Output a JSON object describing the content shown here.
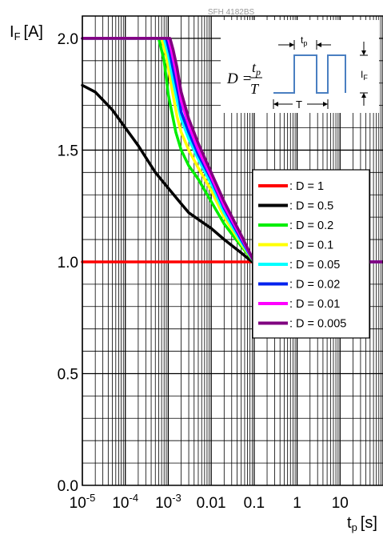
{
  "chart_data": {
    "type": "line",
    "title": "SFH 4182BS",
    "ylabel_main": "I",
    "ylabel_sub": "F",
    "ylabel_unit": "[A]",
    "xlabel_main": "t",
    "xlabel_sub": "p",
    "xlabel_unit": "[s]",
    "xscale": "log",
    "xlim": [
      1e-05,
      100
    ],
    "ylim": [
      0,
      2.1
    ],
    "grid": true,
    "x_ticks": [
      {
        "value": 1e-05,
        "base": "10",
        "exp": "-5"
      },
      {
        "value": 0.0001,
        "base": "10",
        "exp": "-4"
      },
      {
        "value": 0.001,
        "base": "10",
        "exp": "-3"
      },
      {
        "value": 0.01,
        "label": "0.01"
      },
      {
        "value": 0.1,
        "label": "0.1"
      },
      {
        "value": 1,
        "label": "1"
      },
      {
        "value": 10,
        "label": "10"
      }
    ],
    "y_ticks": [
      {
        "value": 0,
        "label": "0.0"
      },
      {
        "value": 0.5,
        "label": "0.5"
      },
      {
        "value": 1.0,
        "label": "1.0"
      },
      {
        "value": 1.5,
        "label": "1.5"
      },
      {
        "value": 2.0,
        "label": "2.0"
      }
    ],
    "legend_position": "right",
    "series": [
      {
        "name": ": D = 1",
        "color": "#ff0000",
        "points": [
          [
            1e-05,
            1.0
          ],
          [
            100,
            1.0
          ]
        ]
      },
      {
        "name": ": D = 0.5",
        "color": "#000000",
        "points": [
          [
            1e-05,
            1.79
          ],
          [
            2e-05,
            1.76
          ],
          [
            5e-05,
            1.68
          ],
          [
            0.0001,
            1.6
          ],
          [
            0.0002,
            1.52
          ],
          [
            0.0005,
            1.4
          ],
          [
            0.001,
            1.33
          ],
          [
            0.002,
            1.26
          ],
          [
            0.003,
            1.22
          ],
          [
            0.005,
            1.19
          ],
          [
            0.01,
            1.15
          ],
          [
            0.02,
            1.1
          ],
          [
            0.05,
            1.04
          ],
          [
            0.09,
            1.0
          ],
          [
            100,
            1.0
          ]
        ]
      },
      {
        "name": ": D = 0.2",
        "color": "#00ee00",
        "points": [
          [
            1e-05,
            2.0
          ],
          [
            0.0006,
            2.0
          ],
          [
            0.0008,
            1.9
          ],
          [
            0.001,
            1.75
          ],
          [
            0.0015,
            1.58
          ],
          [
            0.002,
            1.5
          ],
          [
            0.003,
            1.43
          ],
          [
            0.005,
            1.37
          ],
          [
            0.01,
            1.27
          ],
          [
            0.02,
            1.17
          ],
          [
            0.05,
            1.07
          ],
          [
            0.1,
            1.0
          ],
          [
            100,
            1.0
          ]
        ]
      },
      {
        "name": ": D = 0.1",
        "color": "#ffff00",
        "points": [
          [
            1e-05,
            2.0
          ],
          [
            0.0007,
            2.0
          ],
          [
            0.0009,
            1.92
          ],
          [
            0.0012,
            1.78
          ],
          [
            0.0016,
            1.65
          ],
          [
            0.002,
            1.58
          ],
          [
            0.003,
            1.5
          ],
          [
            0.005,
            1.42
          ],
          [
            0.01,
            1.32
          ],
          [
            0.02,
            1.2
          ],
          [
            0.05,
            1.08
          ],
          [
            0.1,
            1.0
          ],
          [
            100,
            1.0
          ]
        ]
      },
      {
        "name": ": D = 0.05",
        "color": "#00ffff",
        "points": [
          [
            1e-05,
            2.0
          ],
          [
            0.0008,
            2.0
          ],
          [
            0.001,
            1.93
          ],
          [
            0.0013,
            1.81
          ],
          [
            0.0017,
            1.7
          ],
          [
            0.002,
            1.64
          ],
          [
            0.003,
            1.55
          ],
          [
            0.005,
            1.46
          ],
          [
            0.01,
            1.35
          ],
          [
            0.02,
            1.22
          ],
          [
            0.05,
            1.09
          ],
          [
            0.1,
            1.0
          ],
          [
            100,
            1.0
          ]
        ]
      },
      {
        "name": ": D = 0.02",
        "color": "#0022ee",
        "points": [
          [
            1e-05,
            2.0
          ],
          [
            0.0009,
            2.0
          ],
          [
            0.0011,
            1.93
          ],
          [
            0.0014,
            1.83
          ],
          [
            0.0018,
            1.73
          ],
          [
            0.002,
            1.67
          ],
          [
            0.003,
            1.58
          ],
          [
            0.005,
            1.48
          ],
          [
            0.01,
            1.37
          ],
          [
            0.02,
            1.24
          ],
          [
            0.05,
            1.1
          ],
          [
            0.1,
            1.0
          ],
          [
            100,
            1.0
          ]
        ]
      },
      {
        "name": ": D = 0.01",
        "color": "#ff00ff",
        "points": [
          [
            1e-05,
            2.0
          ],
          [
            0.001,
            2.0
          ],
          [
            0.0012,
            1.94
          ],
          [
            0.0015,
            1.85
          ],
          [
            0.002,
            1.72
          ],
          [
            0.003,
            1.61
          ],
          [
            0.005,
            1.5
          ],
          [
            0.01,
            1.38
          ],
          [
            0.02,
            1.25
          ],
          [
            0.05,
            1.11
          ],
          [
            0.1,
            1.0
          ],
          [
            100,
            1.0
          ]
        ]
      },
      {
        "name": ": D = 0.005",
        "color": "#800080",
        "points": [
          [
            1e-05,
            2.0
          ],
          [
            0.0011,
            2.0
          ],
          [
            0.0013,
            1.95
          ],
          [
            0.0016,
            1.87
          ],
          [
            0.002,
            1.76
          ],
          [
            0.003,
            1.64
          ],
          [
            0.005,
            1.53
          ],
          [
            0.01,
            1.4
          ],
          [
            0.02,
            1.27
          ],
          [
            0.05,
            1.12
          ],
          [
            0.1,
            1.0
          ],
          [
            100,
            1.0
          ]
        ]
      }
    ],
    "inset": {
      "formula_lhs": "D =",
      "numerator_main": "t",
      "numerator_sub": "p",
      "denominator": "T",
      "tp_label_main": "t",
      "tp_label_sub": "p",
      "T_label": "T",
      "if_label_main": "I",
      "if_label_sub": "F",
      "pulse_color": "#4a7fc1"
    }
  }
}
